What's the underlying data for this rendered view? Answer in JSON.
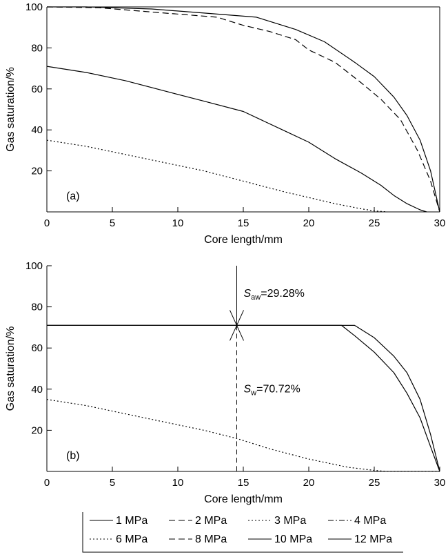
{
  "chart_data": [
    {
      "type": "line",
      "panel_label": "(a)",
      "xlabel": "Core length/mm",
      "ylabel": "Gas saturation/%",
      "xlim": [
        0,
        30
      ],
      "ylim": [
        0,
        100
      ],
      "x_ticks": [
        0,
        5,
        10,
        15,
        20,
        25,
        30
      ],
      "y_ticks": [
        20,
        40,
        60,
        80,
        100
      ],
      "grid": false,
      "series": [
        {
          "id": "s1",
          "dash": "solid",
          "points": [
            [
              0,
              100
            ],
            [
              3,
              100
            ],
            [
              8,
              99
            ],
            [
              12,
              97
            ],
            [
              16,
              95
            ],
            [
              19,
              89
            ],
            [
              21.2,
              83
            ],
            [
              23.5,
              73
            ],
            [
              25,
              66
            ],
            [
              26.5,
              56
            ],
            [
              27.5,
              47
            ],
            [
              28.5,
              35
            ],
            [
              29.3,
              20
            ],
            [
              30,
              0
            ]
          ]
        },
        {
          "id": "s2",
          "dash": "dashed",
          "points": [
            [
              0,
              100
            ],
            [
              4,
              99.6
            ],
            [
              8,
              97.5
            ],
            [
              11,
              96
            ],
            [
              13,
              95
            ],
            [
              15,
              91
            ],
            [
              17,
              88
            ],
            [
              19,
              84
            ],
            [
              20,
              79
            ],
            [
              22,
              73
            ],
            [
              24,
              63
            ],
            [
              25.5,
              55
            ],
            [
              27,
              45
            ],
            [
              28.3,
              30
            ],
            [
              29.3,
              15
            ],
            [
              30,
              0
            ]
          ]
        },
        {
          "id": "s3",
          "dash": "solid",
          "points": [
            [
              0,
              71
            ],
            [
              3,
              68
            ],
            [
              6,
              64
            ],
            [
              9,
              59
            ],
            [
              12,
              54
            ],
            [
              15,
              49
            ],
            [
              18,
              40
            ],
            [
              20,
              34
            ],
            [
              22,
              26
            ],
            [
              24,
              19
            ],
            [
              25.5,
              13
            ],
            [
              26.5,
              8
            ],
            [
              27.5,
              4
            ],
            [
              28.5,
              1
            ],
            [
              29,
              0
            ]
          ]
        },
        {
          "id": "s4",
          "dash": "dotted",
          "points": [
            [
              0,
              35
            ],
            [
              3,
              32
            ],
            [
              6,
              28
            ],
            [
              9,
              24
            ],
            [
              12,
              20
            ],
            [
              15,
              15
            ],
            [
              18,
              10
            ],
            [
              20,
              7
            ],
            [
              22,
              4
            ],
            [
              24,
              1.5
            ],
            [
              25,
              0.5
            ],
            [
              26,
              0
            ]
          ]
        }
      ]
    },
    {
      "type": "line",
      "panel_label": "(b)",
      "xlabel": "Core length/mm",
      "ylabel": "Gas saturation/%",
      "xlim": [
        0,
        30
      ],
      "ylim": [
        0,
        100
      ],
      "x_ticks": [
        0,
        5,
        10,
        15,
        20,
        25,
        30
      ],
      "y_ticks": [
        20,
        40,
        60,
        80,
        100
      ],
      "grid": false,
      "series": [
        {
          "id": "s1",
          "dash": "solid",
          "points": [
            [
              0,
              71
            ],
            [
              23.5,
              71
            ],
            [
              25,
              65
            ],
            [
              26.5,
              56
            ],
            [
              27.5,
              48
            ],
            [
              28.5,
              35
            ],
            [
              29.3,
              18
            ],
            [
              30,
              0
            ]
          ]
        },
        {
          "id": "s2",
          "dash": "solid",
          "points": [
            [
              0,
              71
            ],
            [
              22.5,
              71
            ],
            [
              23.5,
              66
            ],
            [
              25,
              58
            ],
            [
              26.5,
              48
            ],
            [
              27.5,
              38
            ],
            [
              28.5,
              26
            ],
            [
              29.3,
              12
            ],
            [
              30,
              0
            ]
          ]
        },
        {
          "id": "s4",
          "dash": "dotted",
          "points": [
            [
              0,
              35
            ],
            [
              3,
              32
            ],
            [
              6,
              28
            ],
            [
              9,
              24
            ],
            [
              12,
              20
            ],
            [
              14.5,
              16
            ],
            [
              17,
              11
            ],
            [
              20,
              6
            ],
            [
              23,
              2
            ],
            [
              25,
              0.5
            ],
            [
              26,
              0
            ],
            [
              30,
              0
            ]
          ]
        }
      ],
      "marker": {
        "x": 14.5,
        "y": 71
      },
      "annotations": {
        "saw": {
          "symbol": "S",
          "subscript": "aw",
          "value": "=29.28%"
        },
        "sw": {
          "symbol": "S",
          "subscript": "w",
          "value": "=70.72%"
        }
      }
    }
  ],
  "legend": {
    "placement": "bottom",
    "entries": [
      {
        "label": "1 MPa",
        "dash": "solid"
      },
      {
        "label": "2 MPa",
        "dash": "dashed"
      },
      {
        "label": "3 MPa",
        "dash": "dotted"
      },
      {
        "label": "4 MPa",
        "dash": "dashdot"
      },
      {
        "label": "6 MPa",
        "dash": "dotted"
      },
      {
        "label": "8 MPa",
        "dash": "dashed"
      },
      {
        "label": "10 MPa",
        "dash": "solid"
      },
      {
        "label": "12 MPa",
        "dash": "solid"
      }
    ]
  }
}
